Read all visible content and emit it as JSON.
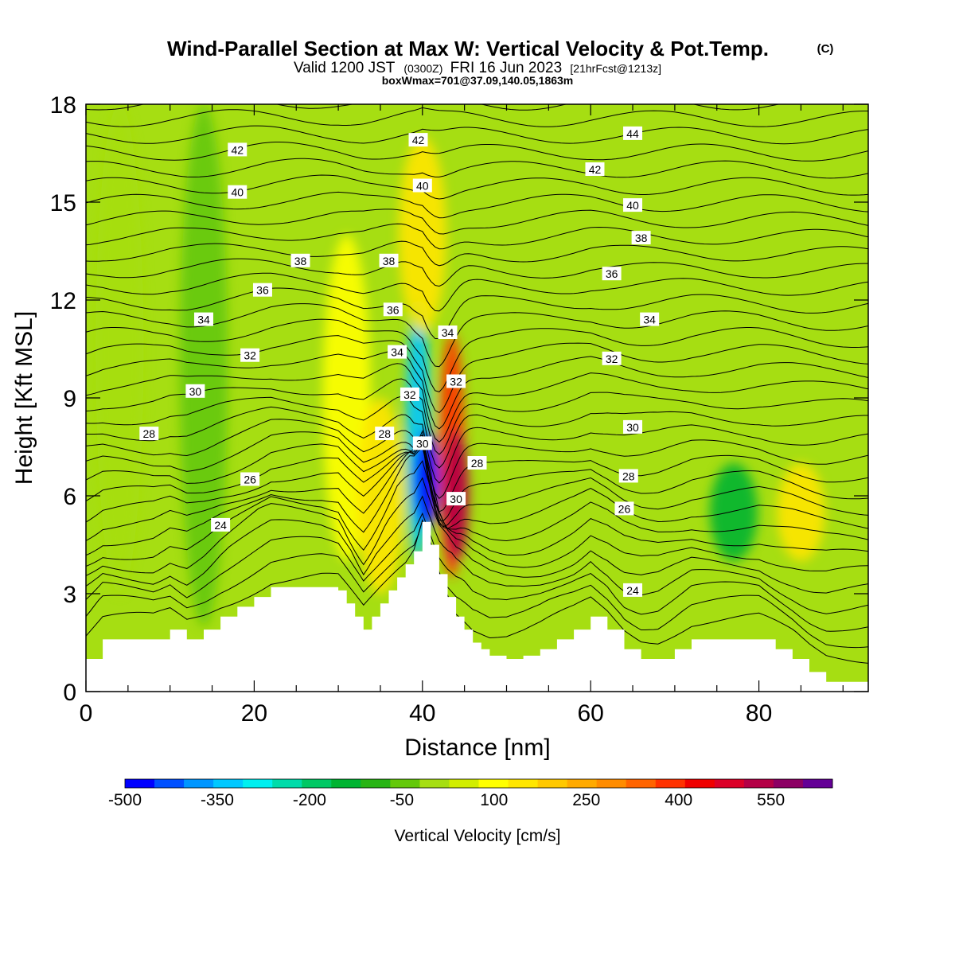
{
  "header": {
    "title": "Wind-Parallel Section at Max W: Vertical Velocity & Pot.Temp.",
    "copyright": "(C)",
    "valid_prefix": "Valid 1200 JST",
    "valid_zulu": "(0300Z)",
    "valid_suffix": "FRI 16 Jun 2023",
    "forecast_tag": "[21hrFcst@1213z]",
    "box_info": "boxWmax=701@37.09,140.05,1863m"
  },
  "colors": {
    "background_field": "#a6de12",
    "terrain": "#ffffff",
    "contour": "#000000"
  },
  "chart_data": {
    "type": "heatmap",
    "xlabel": "Distance [nm]",
    "ylabel": "Height [Kft MSL]",
    "xlim": [
      0,
      93
    ],
    "ylim": [
      0,
      18
    ],
    "x_ticks": [
      0,
      20,
      40,
      60,
      80
    ],
    "y_ticks": [
      0,
      3,
      6,
      9,
      12,
      15,
      18
    ],
    "grid": false,
    "colorbar": {
      "label": "Vertical Velocity [cm/s]",
      "min": -500,
      "max": 650,
      "step": 50,
      "tick_labels": [
        "-500",
        "-350",
        "-200",
        "-50",
        "100",
        "250",
        "400",
        "550"
      ],
      "colors": [
        "#0000ff",
        "#0050ff",
        "#0096ff",
        "#00c8ff",
        "#00f0f0",
        "#00dcaa",
        "#00c864",
        "#00b432",
        "#28b414",
        "#64c80a",
        "#a6de12",
        "#d2ee00",
        "#ffff00",
        "#ffe600",
        "#ffc800",
        "#ffaa00",
        "#ff8c00",
        "#ff6400",
        "#ff3200",
        "#f00000",
        "#dc0028",
        "#b40046",
        "#8c0064",
        "#640096"
      ]
    },
    "terrain_profile": {
      "x": [
        0,
        2,
        4,
        6,
        8,
        10,
        12,
        14,
        16,
        18,
        20,
        22,
        24,
        26,
        28,
        30,
        31,
        32,
        33,
        34,
        35,
        36,
        37,
        38,
        39,
        40,
        41,
        42,
        43,
        44,
        45,
        46,
        47,
        48,
        50,
        52,
        54,
        56,
        58,
        60,
        62,
        64,
        66,
        68,
        70,
        72,
        74,
        76,
        78,
        80,
        82,
        84,
        86,
        88,
        90,
        93
      ],
      "y": [
        1.0,
        1.6,
        1.6,
        1.6,
        1.6,
        1.9,
        1.6,
        1.9,
        2.3,
        2.6,
        2.9,
        3.2,
        3.2,
        3.2,
        3.2,
        3.1,
        2.7,
        2.3,
        1.9,
        2.3,
        2.7,
        3.1,
        3.5,
        3.9,
        4.3,
        5.2,
        4.5,
        3.6,
        2.9,
        2.3,
        1.9,
        1.5,
        1.3,
        1.1,
        1.0,
        1.1,
        1.3,
        1.6,
        1.9,
        2.3,
        1.9,
        1.3,
        1.0,
        1.0,
        1.3,
        1.6,
        1.6,
        1.6,
        1.6,
        1.6,
        1.3,
        1.0,
        0.6,
        0.3,
        0.3,
        0.3
      ]
    },
    "field_features": [
      {
        "x": 4,
        "y_from": 3,
        "y_to": 18,
        "w": 0
      },
      {
        "x": 14,
        "y_from": 2,
        "y_to": 18,
        "w": -50
      },
      {
        "x": 31,
        "y_from": 4,
        "y_to": 14,
        "w": 100
      },
      {
        "x": 35,
        "y_from": 3,
        "y_to": 9,
        "w": 150
      },
      {
        "x": 39.5,
        "y_from": 4,
        "y_to": 12,
        "w": -350
      },
      {
        "x": 40.5,
        "y_from": 5,
        "y_to": 8,
        "w": -500
      },
      {
        "x": 43.5,
        "y_from": 3.5,
        "y_to": 11,
        "w": 400
      },
      {
        "x": 44,
        "y_from": 4,
        "y_to": 8,
        "w": 550
      },
      {
        "x": 40,
        "y_from": 11,
        "y_to": 17,
        "w": 150
      },
      {
        "x": 77,
        "y_from": 4,
        "y_to": 7,
        "w": -150
      },
      {
        "x": 85,
        "y_from": 4,
        "y_to": 7,
        "w": 150
      }
    ],
    "theta_labels": [
      {
        "text": "42",
        "x": 18,
        "y": 16.6
      },
      {
        "text": "40",
        "x": 18,
        "y": 15.3
      },
      {
        "text": "38",
        "x": 25.5,
        "y": 13.2
      },
      {
        "text": "36",
        "x": 21,
        "y": 12.3
      },
      {
        "text": "34",
        "x": 14,
        "y": 11.4
      },
      {
        "text": "32",
        "x": 19.5,
        "y": 10.3
      },
      {
        "text": "30",
        "x": 13,
        "y": 9.2
      },
      {
        "text": "28",
        "x": 7.5,
        "y": 7.9
      },
      {
        "text": "26",
        "x": 19.5,
        "y": 6.5
      },
      {
        "text": "24",
        "x": 16,
        "y": 5.1
      },
      {
        "text": "42",
        "x": 39.5,
        "y": 16.9
      },
      {
        "text": "40",
        "x": 40,
        "y": 15.5
      },
      {
        "text": "38",
        "x": 36,
        "y": 13.2
      },
      {
        "text": "36",
        "x": 36.5,
        "y": 11.7
      },
      {
        "text": "34",
        "x": 37,
        "y": 10.4
      },
      {
        "text": "32",
        "x": 38.5,
        "y": 9.1
      },
      {
        "text": "28",
        "x": 35.5,
        "y": 7.9
      },
      {
        "text": "30",
        "x": 40,
        "y": 7.6
      },
      {
        "text": "34",
        "x": 43,
        "y": 11.0
      },
      {
        "text": "32",
        "x": 44,
        "y": 9.5
      },
      {
        "text": "28",
        "x": 46.5,
        "y": 7.0
      },
      {
        "text": "30",
        "x": 44,
        "y": 5.9
      },
      {
        "text": "44",
        "x": 65,
        "y": 17.1
      },
      {
        "text": "42",
        "x": 60.5,
        "y": 16.0
      },
      {
        "text": "40",
        "x": 65,
        "y": 14.9
      },
      {
        "text": "38",
        "x": 66,
        "y": 13.9
      },
      {
        "text": "36",
        "x": 62.5,
        "y": 12.8
      },
      {
        "text": "34",
        "x": 67,
        "y": 11.4
      },
      {
        "text": "32",
        "x": 62.5,
        "y": 10.2
      },
      {
        "text": "30",
        "x": 65,
        "y": 8.1
      },
      {
        "text": "28",
        "x": 64.5,
        "y": 6.6
      },
      {
        "text": "26",
        "x": 64,
        "y": 5.6
      },
      {
        "text": "24",
        "x": 65,
        "y": 3.1
      }
    ]
  }
}
